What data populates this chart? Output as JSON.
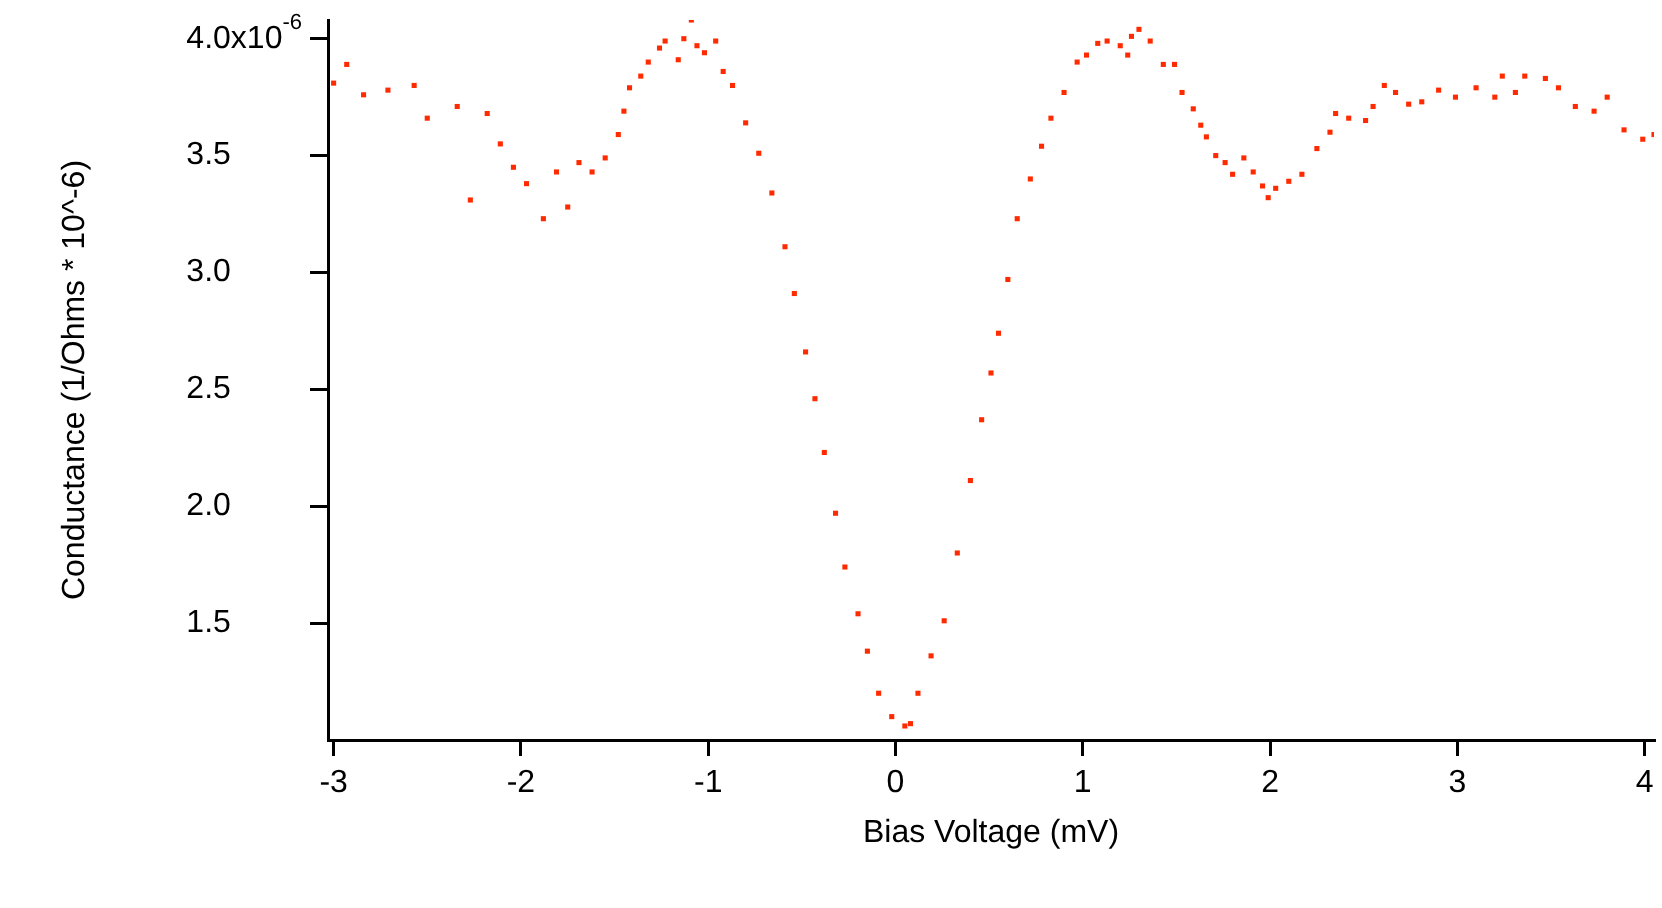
{
  "chart_data": {
    "type": "scatter",
    "xlabel": "Bias Voltage (mV)",
    "ylabel": "Conductance (1/Ohms * 10^-6)",
    "marker": "square",
    "grid": false,
    "legend": false,
    "annotations": [
      "x10$^{-6}$"
    ],
    "xlim": [
      -3.03,
      4.05
    ],
    "ylim": [
      1.0,
      4.08
    ],
    "xticks": [
      -3,
      -2,
      -1,
      0,
      1,
      2,
      3,
      4
    ],
    "yticks": [
      {
        "value": 1.5,
        "label": "1.5"
      },
      {
        "value": 2.0,
        "label": "2.0"
      },
      {
        "value": 2.5,
        "label": "2.5"
      },
      {
        "value": 3.0,
        "label": "3.0"
      },
      {
        "value": 3.5,
        "label": "3.5"
      },
      {
        "value": 4.0,
        "label": "4.0"
      }
    ],
    "series": [
      {
        "color": "#ff2a00",
        "x": [
          -3.0,
          -2.93,
          -2.84,
          -2.71,
          -2.57,
          -2.5,
          -2.34,
          -2.27,
          -2.18,
          -2.11,
          -2.04,
          -1.97,
          -1.88,
          -1.81,
          -1.75,
          -1.69,
          -1.62,
          -1.55,
          -1.48,
          -1.45,
          -1.42,
          -1.36,
          -1.32,
          -1.26,
          -1.23,
          -1.16,
          -1.13,
          -1.09,
          -1.06,
          -1.02,
          -0.96,
          -0.92,
          -0.87,
          -0.8,
          -0.73,
          -0.66,
          -0.59,
          -0.54,
          -0.48,
          -0.43,
          -0.38,
          -0.32,
          -0.27,
          -0.2,
          -0.15,
          -0.09,
          -0.02,
          0.05,
          0.08,
          0.12,
          0.19,
          0.26,
          0.33,
          0.4,
          0.46,
          0.51,
          0.55,
          0.6,
          0.65,
          0.72,
          0.78,
          0.83,
          0.9,
          0.97,
          1.02,
          1.08,
          1.13,
          1.2,
          1.24,
          1.26,
          1.3,
          1.36,
          1.43,
          1.49,
          1.53,
          1.59,
          1.63,
          1.66,
          1.71,
          1.76,
          1.8,
          1.86,
          1.91,
          1.96,
          1.99,
          2.03,
          2.1,
          2.17,
          2.25,
          2.32,
          2.35,
          2.42,
          2.51,
          2.55,
          2.61,
          2.67,
          2.74,
          2.81,
          2.9,
          2.99,
          3.1,
          3.2,
          3.24,
          3.31,
          3.36,
          3.47,
          3.54,
          3.63,
          3.73,
          3.8,
          3.89,
          3.99,
          4.05
        ],
        "values": [
          3.81,
          3.89,
          3.76,
          3.78,
          3.8,
          3.66,
          3.71,
          3.31,
          3.68,
          3.55,
          3.45,
          3.38,
          3.23,
          3.43,
          3.28,
          3.47,
          3.43,
          3.49,
          3.59,
          3.69,
          3.79,
          3.84,
          3.9,
          3.96,
          3.99,
          3.91,
          4.0,
          4.08,
          3.97,
          3.94,
          3.99,
          3.86,
          3.8,
          3.64,
          3.51,
          3.34,
          3.11,
          2.91,
          2.66,
          2.46,
          2.23,
          1.97,
          1.74,
          1.54,
          1.38,
          1.2,
          1.1,
          1.06,
          1.07,
          1.2,
          1.36,
          1.51,
          1.8,
          2.11,
          2.37,
          2.57,
          2.74,
          2.97,
          3.23,
          3.4,
          3.54,
          3.66,
          3.77,
          3.9,
          3.93,
          3.98,
          3.99,
          3.97,
          3.93,
          4.01,
          4.04,
          3.99,
          3.89,
          3.89,
          3.77,
          3.7,
          3.63,
          3.58,
          3.5,
          3.47,
          3.42,
          3.49,
          3.43,
          3.37,
          3.32,
          3.36,
          3.39,
          3.42,
          3.53,
          3.6,
          3.68,
          3.66,
          3.65,
          3.71,
          3.8,
          3.77,
          3.72,
          3.73,
          3.78,
          3.75,
          3.79,
          3.75,
          3.84,
          3.77,
          3.84,
          3.83,
          3.79,
          3.71,
          3.69,
          3.75,
          3.61,
          3.57,
          3.59
        ]
      }
    ]
  }
}
